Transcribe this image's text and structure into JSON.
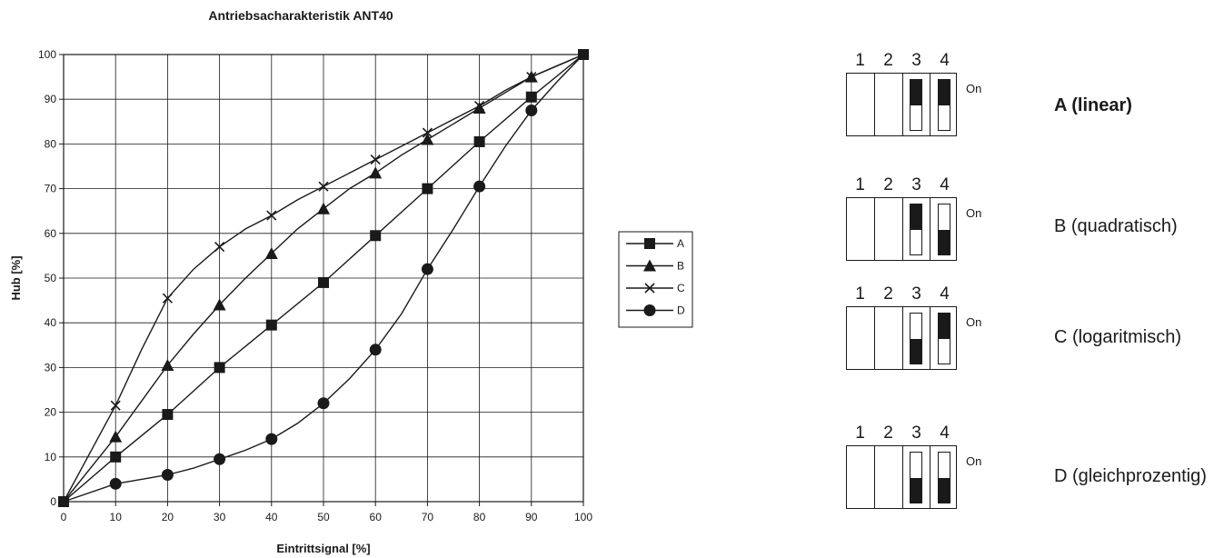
{
  "chart_data": {
    "type": "line",
    "title": "Antriebsacharakteristik ANT40",
    "xlabel": "Eintrittsignal [%]",
    "ylabel": "Hub [%]",
    "xlim": [
      0,
      100
    ],
    "ylim": [
      0,
      100
    ],
    "x_ticks": [
      0,
      10,
      20,
      30,
      40,
      50,
      60,
      70,
      80,
      90,
      100
    ],
    "y_ticks": [
      0,
      10,
      20,
      30,
      40,
      50,
      60,
      70,
      80,
      90,
      100
    ],
    "grid": true,
    "legend_position": "right",
    "series": [
      {
        "name": "A",
        "marker": "square",
        "points": [
          [
            0,
            0
          ],
          [
            10,
            10
          ],
          [
            20,
            19.5
          ],
          [
            30,
            30
          ],
          [
            40,
            39.5
          ],
          [
            50,
            49
          ],
          [
            60,
            59.5
          ],
          [
            70,
            70
          ],
          [
            80,
            80.5
          ],
          [
            90,
            90.5
          ],
          [
            100,
            100
          ]
        ],
        "markers": [
          [
            0,
            0
          ],
          [
            10,
            10
          ],
          [
            20,
            19.5
          ],
          [
            30,
            30
          ],
          [
            40,
            39.5
          ],
          [
            50,
            49
          ],
          [
            60,
            59.5
          ],
          [
            70,
            70
          ],
          [
            80,
            80.5
          ],
          [
            90,
            90.5
          ],
          [
            100,
            100
          ]
        ]
      },
      {
        "name": "B",
        "marker": "triangle",
        "points": [
          [
            0,
            0
          ],
          [
            10,
            14.5
          ],
          [
            15,
            22.5
          ],
          [
            20,
            30.5
          ],
          [
            25,
            37.5
          ],
          [
            30,
            44
          ],
          [
            35,
            50
          ],
          [
            40,
            55.5
          ],
          [
            45,
            61
          ],
          [
            50,
            65.5
          ],
          [
            55,
            70
          ],
          [
            60,
            73.5
          ],
          [
            65,
            77.5
          ],
          [
            70,
            81
          ],
          [
            75,
            84.5
          ],
          [
            80,
            88
          ],
          [
            85,
            91.5
          ],
          [
            90,
            95
          ],
          [
            95,
            97.5
          ],
          [
            100,
            100
          ]
        ],
        "markers": [
          [
            10,
            14.5
          ],
          [
            20,
            30.5
          ],
          [
            30,
            44
          ],
          [
            40,
            55.5
          ],
          [
            50,
            65.5
          ],
          [
            60,
            73.5
          ],
          [
            70,
            81
          ],
          [
            80,
            88
          ],
          [
            90,
            95
          ]
        ]
      },
      {
        "name": "C",
        "marker": "x",
        "points": [
          [
            0,
            0
          ],
          [
            10,
            21.5
          ],
          [
            15,
            34
          ],
          [
            20,
            45.5
          ],
          [
            25,
            52
          ],
          [
            30,
            57
          ],
          [
            35,
            61
          ],
          [
            40,
            64
          ],
          [
            45,
            67.5
          ],
          [
            50,
            70.5
          ],
          [
            55,
            73.5
          ],
          [
            60,
            76.5
          ],
          [
            65,
            79.5
          ],
          [
            70,
            82.5
          ],
          [
            75,
            85.5
          ],
          [
            80,
            88.5
          ],
          [
            85,
            92
          ],
          [
            90,
            95
          ],
          [
            95,
            97.5
          ],
          [
            100,
            100
          ]
        ],
        "markers": [
          [
            10,
            21.5
          ],
          [
            20,
            45.5
          ],
          [
            30,
            57
          ],
          [
            40,
            64
          ],
          [
            50,
            70.5
          ],
          [
            60,
            76.5
          ],
          [
            70,
            82.5
          ],
          [
            80,
            88.5
          ],
          [
            90,
            95
          ]
        ]
      },
      {
        "name": "D",
        "marker": "circle",
        "points": [
          [
            0,
            0
          ],
          [
            10,
            4
          ],
          [
            15,
            5
          ],
          [
            20,
            6
          ],
          [
            25,
            7.5
          ],
          [
            30,
            9.5
          ],
          [
            35,
            11.5
          ],
          [
            40,
            14
          ],
          [
            45,
            17.5
          ],
          [
            50,
            22
          ],
          [
            55,
            27.5
          ],
          [
            60,
            34
          ],
          [
            65,
            42
          ],
          [
            70,
            52
          ],
          [
            75,
            61
          ],
          [
            80,
            70.5
          ],
          [
            85,
            79.5
          ],
          [
            90,
            87.5
          ],
          [
            95,
            94
          ],
          [
            100,
            100
          ]
        ],
        "markers": [
          [
            10,
            4
          ],
          [
            20,
            6
          ],
          [
            30,
            9.5
          ],
          [
            40,
            14
          ],
          [
            50,
            22
          ],
          [
            60,
            34
          ],
          [
            70,
            52
          ],
          [
            80,
            70.5
          ],
          [
            90,
            87.5
          ]
        ]
      }
    ]
  },
  "dip_panel": {
    "on_label": "On",
    "switch_numbers": [
      "1",
      "2",
      "3",
      "4"
    ],
    "modes": [
      {
        "label": "A (linear)",
        "bold": true,
        "switches": [
          "none",
          "none",
          "top",
          "top"
        ]
      },
      {
        "label": "B (quadratisch)",
        "bold": false,
        "switches": [
          "none",
          "none",
          "top",
          "bottom"
        ]
      },
      {
        "label": "C (logaritmisch)",
        "bold": false,
        "switches": [
          "none",
          "none",
          "bottom",
          "top"
        ]
      },
      {
        "label": "D (gleichprozentig)",
        "bold": false,
        "switches": [
          "none",
          "none",
          "bottom",
          "bottom"
        ]
      }
    ]
  }
}
